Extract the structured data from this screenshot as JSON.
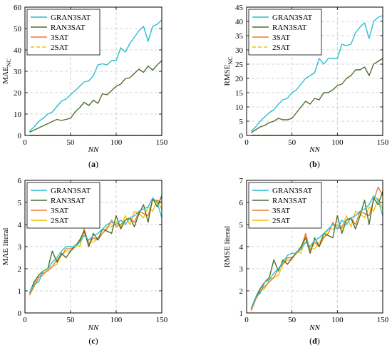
{
  "colors": {
    "GRAN3SAT": "#2bbfcf",
    "RAN3SAT": "#4f6e2d",
    "3SAT": "#f07b2f",
    "2SAT": "#f2c200"
  },
  "chart_data": [
    {
      "type": "line",
      "panel": "(a)",
      "ylabel_main": "MAE",
      "ylabel_sub": "NC",
      "xlabel": "NN",
      "xlim": [
        0,
        150
      ],
      "ylim": [
        0,
        60
      ],
      "xticks": [
        0,
        50,
        100,
        150
      ],
      "yticks": [
        0,
        10,
        20,
        30,
        40,
        50,
        60
      ],
      "grid": true,
      "legend": "top-left",
      "x": [
        5,
        10,
        15,
        20,
        25,
        30,
        35,
        40,
        45,
        50,
        55,
        60,
        65,
        70,
        75,
        80,
        85,
        90,
        95,
        100,
        105,
        110,
        115,
        120,
        125,
        130,
        135,
        140,
        145,
        150
      ],
      "series": [
        {
          "name": "GRAN3SAT",
          "values": [
            2,
            4,
            6.5,
            8,
            10,
            11,
            13.5,
            16,
            17,
            19,
            21,
            23,
            25,
            25.5,
            28,
            33,
            33.5,
            33,
            35,
            35,
            41,
            39,
            43,
            46,
            49,
            51,
            44,
            51,
            52,
            54
          ]
        },
        {
          "name": "RAN3SAT",
          "values": [
            1.5,
            2.5,
            3.5,
            4.5,
            5.5,
            6.5,
            7.5,
            7,
            7.5,
            8,
            11,
            13,
            15.5,
            14,
            16.5,
            15,
            19.5,
            19,
            21,
            23,
            24,
            26.5,
            27,
            29,
            31,
            29.5,
            32.5,
            30.5,
            33,
            35
          ]
        },
        {
          "name": "3SAT",
          "values": [
            0,
            0,
            0,
            0,
            0,
            0,
            0,
            0,
            0,
            0,
            0,
            0,
            0,
            0,
            0,
            0,
            0,
            0,
            0,
            0,
            0,
            0,
            0,
            0,
            0,
            0,
            0,
            0,
            0,
            0
          ]
        },
        {
          "name": "2SAT",
          "values": [
            0,
            0,
            0,
            0,
            0,
            0,
            0,
            0,
            0,
            0,
            0,
            0,
            0,
            0,
            0,
            0,
            0,
            0,
            0,
            0,
            0,
            0,
            0,
            0,
            0,
            0,
            0,
            0,
            0,
            0
          ]
        }
      ]
    },
    {
      "type": "line",
      "panel": "(b)",
      "ylabel_main": "RMSE",
      "ylabel_sub": "NC",
      "xlabel": "NN",
      "xlim": [
        0,
        150
      ],
      "ylim": [
        0,
        45
      ],
      "xticks": [
        0,
        50,
        100,
        150
      ],
      "yticks": [
        0,
        5,
        10,
        15,
        20,
        25,
        30,
        35,
        40,
        45
      ],
      "grid": true,
      "legend": "top-left",
      "x": [
        5,
        10,
        15,
        20,
        25,
        30,
        35,
        40,
        45,
        50,
        55,
        60,
        65,
        70,
        75,
        80,
        85,
        90,
        95,
        100,
        105,
        110,
        115,
        120,
        125,
        130,
        135,
        140,
        145,
        150
      ],
      "series": [
        {
          "name": "GRAN3SAT",
          "values": [
            1.5,
            3,
            5,
            6.5,
            8,
            9,
            11,
            12.5,
            13,
            15,
            16,
            18,
            20,
            21,
            22,
            27,
            25,
            27,
            27,
            27,
            32,
            31.5,
            32,
            36,
            38,
            39.5,
            34,
            40,
            41.5,
            42
          ]
        },
        {
          "name": "RAN3SAT",
          "values": [
            1,
            2,
            3,
            3.5,
            4.5,
            5,
            6,
            5.5,
            5.5,
            6,
            8,
            10,
            12,
            11,
            13,
            12.5,
            15,
            15,
            16,
            17.5,
            18,
            20,
            21,
            23,
            23,
            24,
            21,
            25,
            26,
            27
          ]
        },
        {
          "name": "3SAT",
          "values": [
            0,
            0,
            0,
            0,
            0,
            0,
            0,
            0,
            0,
            0,
            0,
            0,
            0,
            0,
            0,
            0,
            0,
            0,
            0,
            0,
            0,
            0,
            0,
            0,
            0,
            0,
            0,
            0,
            0,
            0
          ]
        },
        {
          "name": "2SAT",
          "values": [
            0,
            0,
            0,
            0,
            0,
            0,
            0,
            0,
            0,
            0,
            0,
            0,
            0,
            0,
            0,
            0,
            0,
            0,
            0,
            0,
            0,
            0,
            0,
            0,
            0,
            0,
            0,
            0,
            0,
            0
          ]
        }
      ]
    },
    {
      "type": "line",
      "panel": "(c)",
      "ylabel_main": "MAE literal",
      "ylabel_sub": "",
      "xlabel": "NN",
      "xlim": [
        0,
        150
      ],
      "ylim": [
        0,
        6
      ],
      "xticks": [
        0,
        50,
        100,
        150
      ],
      "yticks": [
        0,
        1,
        2,
        3,
        4,
        5,
        6
      ],
      "grid": true,
      "legend": "top-left",
      "x": [
        5,
        10,
        15,
        20,
        25,
        30,
        35,
        40,
        45,
        50,
        55,
        60,
        65,
        70,
        75,
        80,
        85,
        90,
        95,
        100,
        105,
        110,
        115,
        120,
        125,
        130,
        135,
        140,
        145,
        150
      ],
      "series": [
        {
          "name": "GRAN3SAT",
          "values": [
            0.9,
            1.3,
            1.4,
            1.9,
            2.0,
            2.3,
            2.5,
            2.8,
            3.0,
            3.0,
            3.0,
            3.2,
            3.5,
            3.3,
            3.5,
            3.6,
            3.8,
            4.0,
            4.1,
            4.0,
            4.2,
            4.0,
            4.3,
            4.4,
            4.6,
            4.7,
            4.8,
            5.2,
            5.0,
            4.3
          ]
        },
        {
          "name": "RAN3SAT",
          "values": [
            0.9,
            1.4,
            1.7,
            1.9,
            2.0,
            2.8,
            2.3,
            2.7,
            2.5,
            2.8,
            3.0,
            3.3,
            3.7,
            3.0,
            3.6,
            3.3,
            3.8,
            3.7,
            3.6,
            4.4,
            3.8,
            4.2,
            4.3,
            3.9,
            4.5,
            4.9,
            4.1,
            5.2,
            4.8,
            5.3
          ]
        },
        {
          "name": "3SAT",
          "values": [
            0.8,
            1.2,
            1.6,
            1.8,
            1.9,
            2.1,
            2.4,
            2.6,
            2.9,
            2.9,
            3.0,
            3.2,
            3.8,
            3.1,
            3.4,
            3.3,
            3.6,
            3.8,
            4.2,
            3.9,
            4.0,
            4.2,
            4.3,
            4.1,
            4.6,
            4.5,
            4.4,
            5.1,
            5.1,
            5.0
          ]
        },
        {
          "name": "2SAT",
          "values": [
            0.8,
            1.3,
            1.6,
            1.7,
            2.0,
            2.1,
            2.2,
            2.6,
            2.8,
            2.8,
            3.1,
            3.0,
            3.7,
            3.2,
            3.2,
            3.4,
            3.6,
            3.9,
            3.9,
            4.1,
            3.9,
            4.4,
            4.0,
            4.6,
            4.5,
            4.3,
            4.8,
            4.6,
            5.1,
            4.7
          ]
        }
      ]
    },
    {
      "type": "line",
      "panel": "(d)",
      "ylabel_main": "RMSE literal",
      "ylabel_sub": "",
      "xlabel": "NN",
      "xlim": [
        0,
        150
      ],
      "ylim": [
        1,
        7
      ],
      "xticks": [
        0,
        50,
        100,
        150
      ],
      "yticks": [
        1,
        2,
        3,
        4,
        5,
        6,
        7
      ],
      "grid": true,
      "legend": "top-left",
      "x": [
        5,
        10,
        15,
        20,
        25,
        30,
        35,
        40,
        45,
        50,
        55,
        60,
        65,
        70,
        75,
        80,
        85,
        90,
        95,
        100,
        105,
        110,
        115,
        120,
        125,
        130,
        135,
        140,
        145,
        150
      ],
      "series": [
        {
          "name": "GRAN3SAT",
          "values": [
            1.2,
            1.7,
            1.9,
            2.4,
            2.5,
            2.8,
            3.0,
            3.3,
            3.6,
            3.7,
            3.7,
            3.9,
            4.2,
            4.0,
            4.3,
            4.4,
            4.6,
            4.8,
            5.0,
            4.8,
            5.2,
            5.0,
            5.3,
            5.4,
            5.6,
            5.7,
            5.9,
            6.3,
            6.1,
            5.4
          ]
        },
        {
          "name": "RAN3SAT",
          "values": [
            1.2,
            1.7,
            2.1,
            2.4,
            2.6,
            3.4,
            2.9,
            3.4,
            3.2,
            3.5,
            3.7,
            4.0,
            4.4,
            3.7,
            4.4,
            4.0,
            4.6,
            4.5,
            4.4,
            5.4,
            4.6,
            5.2,
            5.3,
            4.8,
            5.4,
            6.1,
            5.0,
            6.2,
            5.9,
            6.5
          ]
        },
        {
          "name": "3SAT",
          "values": [
            1.1,
            1.6,
            2.0,
            2.2,
            2.4,
            2.6,
            3.0,
            3.2,
            3.5,
            3.5,
            3.7,
            3.9,
            4.6,
            3.8,
            4.2,
            4.0,
            4.4,
            4.6,
            5.1,
            4.8,
            4.9,
            5.2,
            5.3,
            5.0,
            5.6,
            5.5,
            5.4,
            6.1,
            6.7,
            6.3
          ]
        },
        {
          "name": "2SAT",
          "values": [
            1.1,
            1.7,
            2.0,
            2.1,
            2.5,
            2.6,
            2.7,
            3.2,
            3.4,
            3.4,
            3.8,
            3.7,
            4.5,
            3.9,
            3.9,
            4.2,
            4.4,
            4.8,
            4.8,
            5.0,
            4.8,
            5.4,
            4.9,
            5.6,
            5.5,
            5.3,
            5.8,
            5.6,
            6.2,
            5.7
          ]
        }
      ]
    }
  ]
}
